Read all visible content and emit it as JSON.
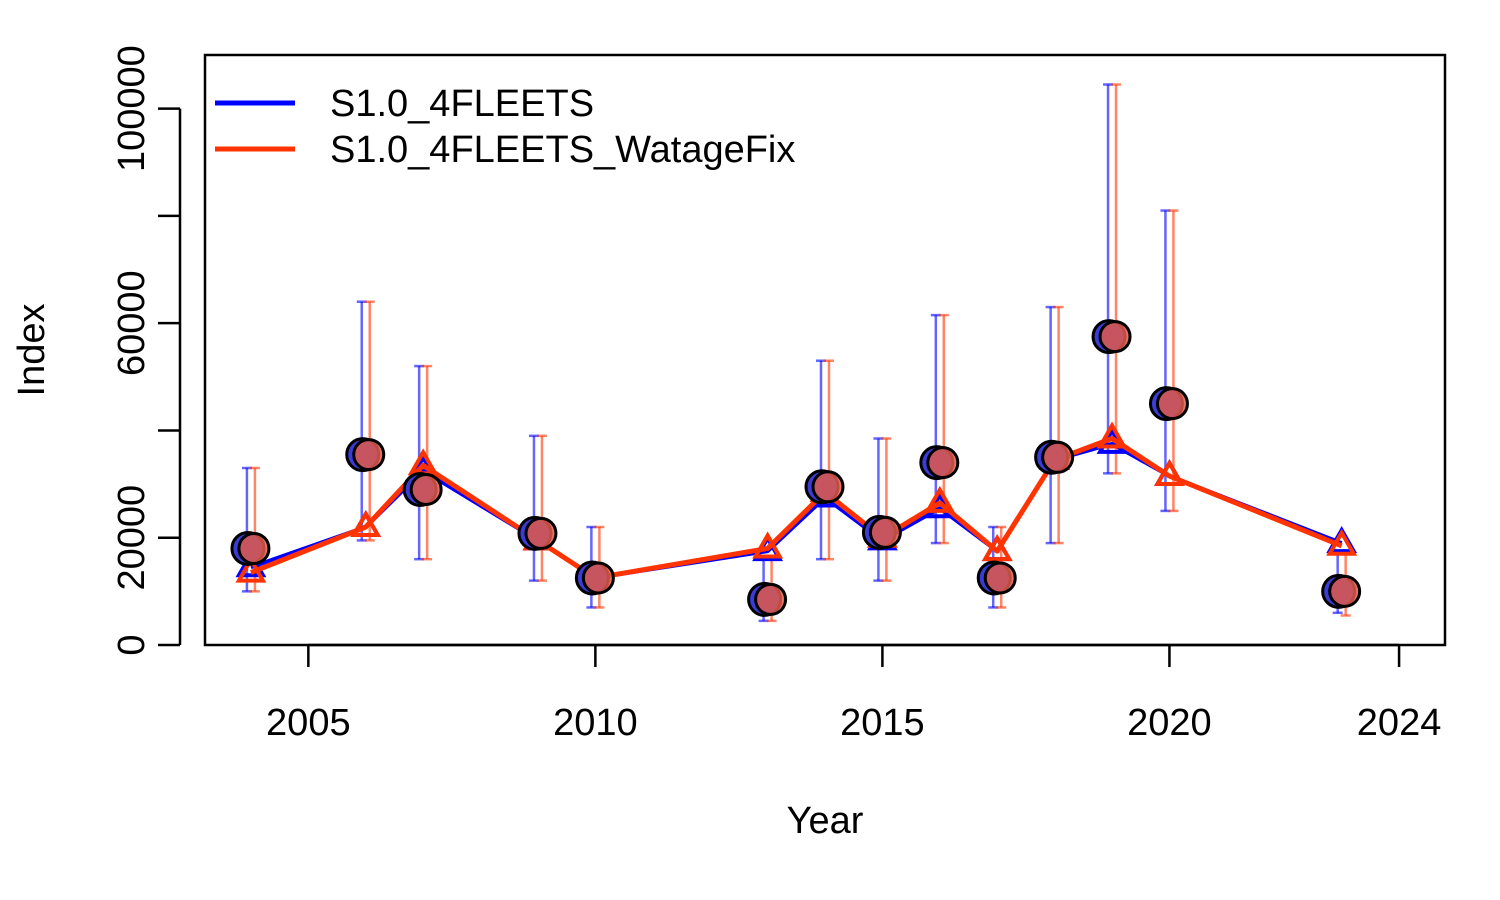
{
  "chart_data": {
    "type": "line",
    "xlabel": "Year",
    "ylabel": "Index",
    "xlim": [
      2003.2,
      2024.8
    ],
    "ylim": [
      0,
      110000
    ],
    "x_ticks": [
      2005,
      2010,
      2015,
      2020,
      2024
    ],
    "y_ticks": [
      0,
      20000,
      40000,
      60000,
      80000,
      100000
    ],
    "y_tick_labels": [
      "0",
      "20000",
      "",
      "60000",
      "",
      "100000"
    ],
    "legend_position": "top-left",
    "observed": {
      "x": [
        2004,
        2006,
        2007,
        2009,
        2010,
        2013,
        2014,
        2015,
        2016,
        2017,
        2018,
        2019,
        2020,
        2023
      ],
      "y": [
        18000,
        35500,
        29000,
        20800,
        12500,
        8500,
        29500,
        21000,
        34000,
        12500,
        35000,
        57500,
        45000,
        10000
      ]
    },
    "series": [
      {
        "name": "S1.0_4FLEETS",
        "color": "#0000ff",
        "x": [
          2004,
          2006,
          2007,
          2009,
          2010,
          2013,
          2014,
          2015,
          2016,
          2017,
          2018,
          2019,
          2020,
          2023
        ],
        "y": [
          14500,
          22000,
          32500,
          19500,
          12500,
          17500,
          27500,
          19500,
          25500,
          17500,
          34500,
          37500,
          31500,
          19000
        ],
        "err_low": [
          10000,
          19500,
          16000,
          12000,
          7000,
          4500,
          16000,
          12000,
          19000,
          7000,
          19000,
          32000,
          25000,
          6000
        ],
        "err_high": [
          33000,
          64000,
          52000,
          39000,
          22000,
          16000,
          53000,
          38500,
          61500,
          22000,
          63000,
          104500,
          81000,
          17000
        ]
      },
      {
        "name": "S1.0_4FLEETS_WatageFix",
        "color": "#ff3300",
        "x": [
          2004,
          2006,
          2007,
          2009,
          2010,
          2013,
          2014,
          2015,
          2016,
          2017,
          2018,
          2019,
          2020,
          2023
        ],
        "y": [
          13500,
          22000,
          33500,
          19500,
          12500,
          18000,
          28500,
          20000,
          26500,
          17500,
          34500,
          38500,
          31500,
          18500
        ],
        "err_low": [
          10000,
          19500,
          16000,
          12000,
          7000,
          4500,
          16000,
          12000,
          19000,
          7000,
          19000,
          32000,
          25000,
          5500
        ],
        "err_high": [
          33000,
          64000,
          52000,
          39000,
          22000,
          16000,
          53000,
          38500,
          61500,
          22000,
          63000,
          104500,
          81000,
          17000
        ]
      }
    ]
  }
}
